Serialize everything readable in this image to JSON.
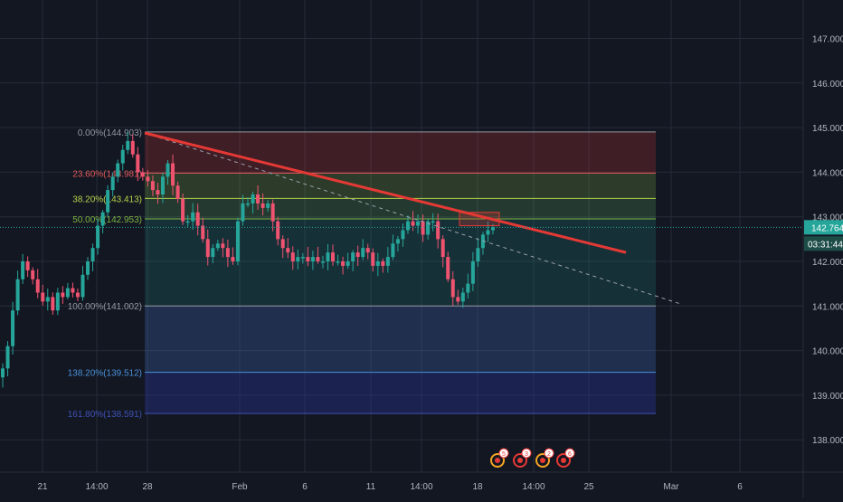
{
  "colors": {
    "background": "#131722",
    "grid": "#262b3a",
    "up": "#26a69a",
    "down": "#ef5370",
    "trendline": "#e53935",
    "axis_text": "#b2b5be",
    "price_badge": "#26a69a"
  },
  "chart_data": {
    "type": "candlestick",
    "title": "",
    "xlabel": "",
    "ylabel": "",
    "ylim": [
      137.2,
      147.8
    ],
    "grid": true,
    "y_ticks": [
      "138.000",
      "139.000",
      "140.000",
      "141.000",
      "142.000",
      "143.000",
      "144.000",
      "145.000",
      "146.000",
      "147.000"
    ],
    "x_ticks": [
      "21",
      "14:00",
      "28",
      "Feb",
      "6",
      "11",
      "14:00",
      "18",
      "14:00",
      "25",
      "Mar",
      "6"
    ],
    "current_price": "142.764",
    "countdown": "03:31:44",
    "fibonacci_levels": [
      {
        "label": "0.00%(144.903)",
        "price": 144.903,
        "color": "#9598a1"
      },
      {
        "label": "23.60%(143.981)",
        "price": 143.981,
        "color": "#e05a5a"
      },
      {
        "label": "38.20%(143.413)",
        "price": 143.413,
        "color": "#b7d44a"
      },
      {
        "label": "50.00%(142.953)",
        "price": 142.953,
        "color": "#7cb342"
      },
      {
        "label": "100.00%(141.002)",
        "price": 141.002,
        "color": "#9598a1"
      },
      {
        "label": "138.20%(139.512)",
        "price": 139.512,
        "color": "#4a90d9"
      },
      {
        "label": "161.80%(138.591)",
        "price": 138.591,
        "color": "#3f51b5"
      }
    ],
    "trend_line": {
      "start_price": 144.88,
      "end_price": 142.2
    },
    "projection_line": {
      "start_price": 144.88,
      "end_price": 141.05
    },
    "event_markers": [
      "5",
      "3",
      "2",
      "6"
    ],
    "closes": [
      139.6,
      140.1,
      140.9,
      141.6,
      142.0,
      141.8,
      141.6,
      141.3,
      141.1,
      141.2,
      140.9,
      141.3,
      141.2,
      141.4,
      141.3,
      141.2,
      141.7,
      142.0,
      142.3,
      142.8,
      143.1,
      143.6,
      143.9,
      144.2,
      144.5,
      144.7,
      144.4,
      144.0,
      143.9,
      143.8,
      143.6,
      143.5,
      143.9,
      144.2,
      143.7,
      143.4,
      142.9,
      142.9,
      143.1,
      142.8,
      142.5,
      142.1,
      142.3,
      142.4,
      142.3,
      142.1,
      142.0,
      142.9,
      143.3,
      143.3,
      143.5,
      143.3,
      143.2,
      143.3,
      142.9,
      142.5,
      142.3,
      142.2,
      142.0,
      142.1,
      142.1,
      142.0,
      142.1,
      142.0,
      142.0,
      142.2,
      142.0,
      142.0,
      141.9,
      142.0,
      142.2,
      142.1,
      142.3,
      142.2,
      141.9,
      142.0,
      141.9,
      142.1,
      142.4,
      142.5,
      142.7,
      142.9,
      142.8,
      142.9,
      142.6,
      142.9,
      142.9,
      142.5,
      142.1,
      141.6,
      141.2,
      141.1,
      141.3,
      141.5,
      142.0,
      142.3,
      142.6,
      142.7,
      142.76
    ]
  }
}
